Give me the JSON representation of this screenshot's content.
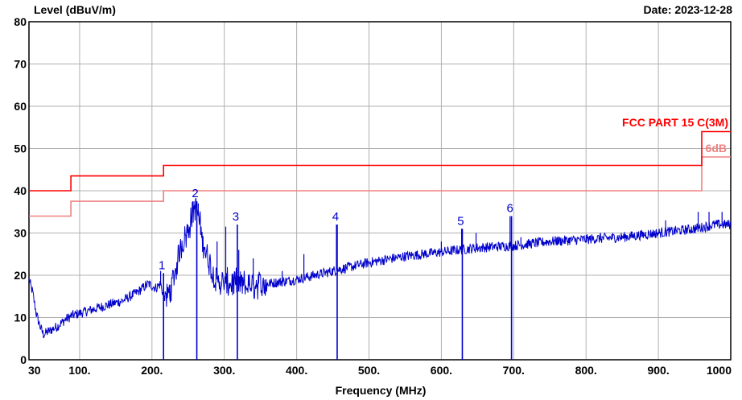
{
  "chart_data": {
    "type": "line",
    "ylabel": "Level (dBuV/m)",
    "xlabel": "Frequency (MHz)",
    "date_text": "Date: 2023-12-28",
    "ylim": [
      0,
      80
    ],
    "xlim": [
      30,
      1000
    ],
    "y_ticks": [
      0,
      10,
      20,
      30,
      40,
      50,
      60,
      70,
      80
    ],
    "x_ticks": [
      {
        "value": 30,
        "label": "30"
      },
      {
        "value": 100,
        "label": "100."
      },
      {
        "value": 200,
        "label": "200."
      },
      {
        "value": 300,
        "label": "300."
      },
      {
        "value": 400,
        "label": "400."
      },
      {
        "value": 500,
        "label": "500."
      },
      {
        "value": 600,
        "label": "600."
      },
      {
        "value": 700,
        "label": "700."
      },
      {
        "value": 800,
        "label": "800."
      },
      {
        "value": 900,
        "label": "900."
      },
      {
        "value": 1000,
        "label": "1000"
      }
    ],
    "grid": true,
    "colors": {
      "limit": "#ff0000",
      "margin": "#f08080",
      "trace": "#0000cc",
      "grid": "#b0b0b0"
    },
    "limit_line": {
      "name": "FCC PART 15 C(3M)",
      "steps": [
        [
          30,
          40
        ],
        [
          88,
          40
        ],
        [
          88,
          43.5
        ],
        [
          216,
          43.5
        ],
        [
          216,
          46
        ],
        [
          960,
          46
        ],
        [
          960,
          54
        ],
        [
          1000,
          54
        ]
      ]
    },
    "margin_line": {
      "name": "6dB",
      "steps": [
        [
          30,
          34
        ],
        [
          88,
          34
        ],
        [
          88,
          37.5
        ],
        [
          216,
          37.5
        ],
        [
          216,
          40
        ],
        [
          960,
          40
        ],
        [
          960,
          48
        ],
        [
          1000,
          48
        ]
      ]
    },
    "trace_anchors": [
      [
        30,
        19
      ],
      [
        35,
        16
      ],
      [
        40,
        11
      ],
      [
        45,
        8
      ],
      [
        50,
        6
      ],
      [
        55,
        6.5
      ],
      [
        60,
        7
      ],
      [
        70,
        8
      ],
      [
        80,
        9.5
      ],
      [
        90,
        10.5
      ],
      [
        100,
        11
      ],
      [
        120,
        12
      ],
      [
        140,
        13
      ],
      [
        160,
        14
      ],
      [
        180,
        16
      ],
      [
        195,
        18
      ],
      [
        205,
        17
      ],
      [
        212,
        18
      ],
      [
        216,
        15
      ],
      [
        222,
        15
      ],
      [
        230,
        19
      ],
      [
        240,
        27
      ],
      [
        250,
        31
      ],
      [
        258,
        36
      ],
      [
        263,
        35
      ],
      [
        268,
        30
      ],
      [
        275,
        25
      ],
      [
        285,
        20
      ],
      [
        295,
        18
      ],
      [
        310,
        18
      ],
      [
        330,
        17.5
      ],
      [
        360,
        18
      ],
      [
        400,
        19
      ],
      [
        450,
        21
      ],
      [
        500,
        23
      ],
      [
        550,
        24.5
      ],
      [
        600,
        25.5
      ],
      [
        650,
        26.5
      ],
      [
        700,
        27
      ],
      [
        750,
        28
      ],
      [
        800,
        28.5
      ],
      [
        850,
        29
      ],
      [
        900,
        30
      ],
      [
        950,
        31
      ],
      [
        980,
        32
      ],
      [
        1000,
        32
      ]
    ],
    "spikes": [
      [
        212,
        21
      ],
      [
        258,
        37.5
      ],
      [
        264,
        37
      ],
      [
        290,
        28
      ],
      [
        302,
        31.5
      ],
      [
        320,
        26
      ],
      [
        340,
        24
      ],
      [
        380,
        21
      ],
      [
        410,
        25
      ],
      [
        455,
        32
      ],
      [
        600,
        28
      ],
      [
        628,
        31
      ],
      [
        648,
        30
      ],
      [
        695,
        34
      ],
      [
        710,
        29
      ],
      [
        760,
        29
      ],
      [
        820,
        30
      ],
      [
        910,
        33
      ],
      [
        955,
        35
      ],
      [
        970,
        35
      ],
      [
        988,
        35
      ]
    ],
    "markers": [
      {
        "label": "1",
        "x": 216,
        "y": 20.5
      },
      {
        "label": "2",
        "x": 262,
        "y": 37.5
      },
      {
        "label": "3",
        "x": 318,
        "y": 32
      },
      {
        "label": "4",
        "x": 456,
        "y": 32
      },
      {
        "label": "5",
        "x": 629,
        "y": 31
      },
      {
        "label": "6",
        "x": 697,
        "y": 34
      }
    ]
  }
}
